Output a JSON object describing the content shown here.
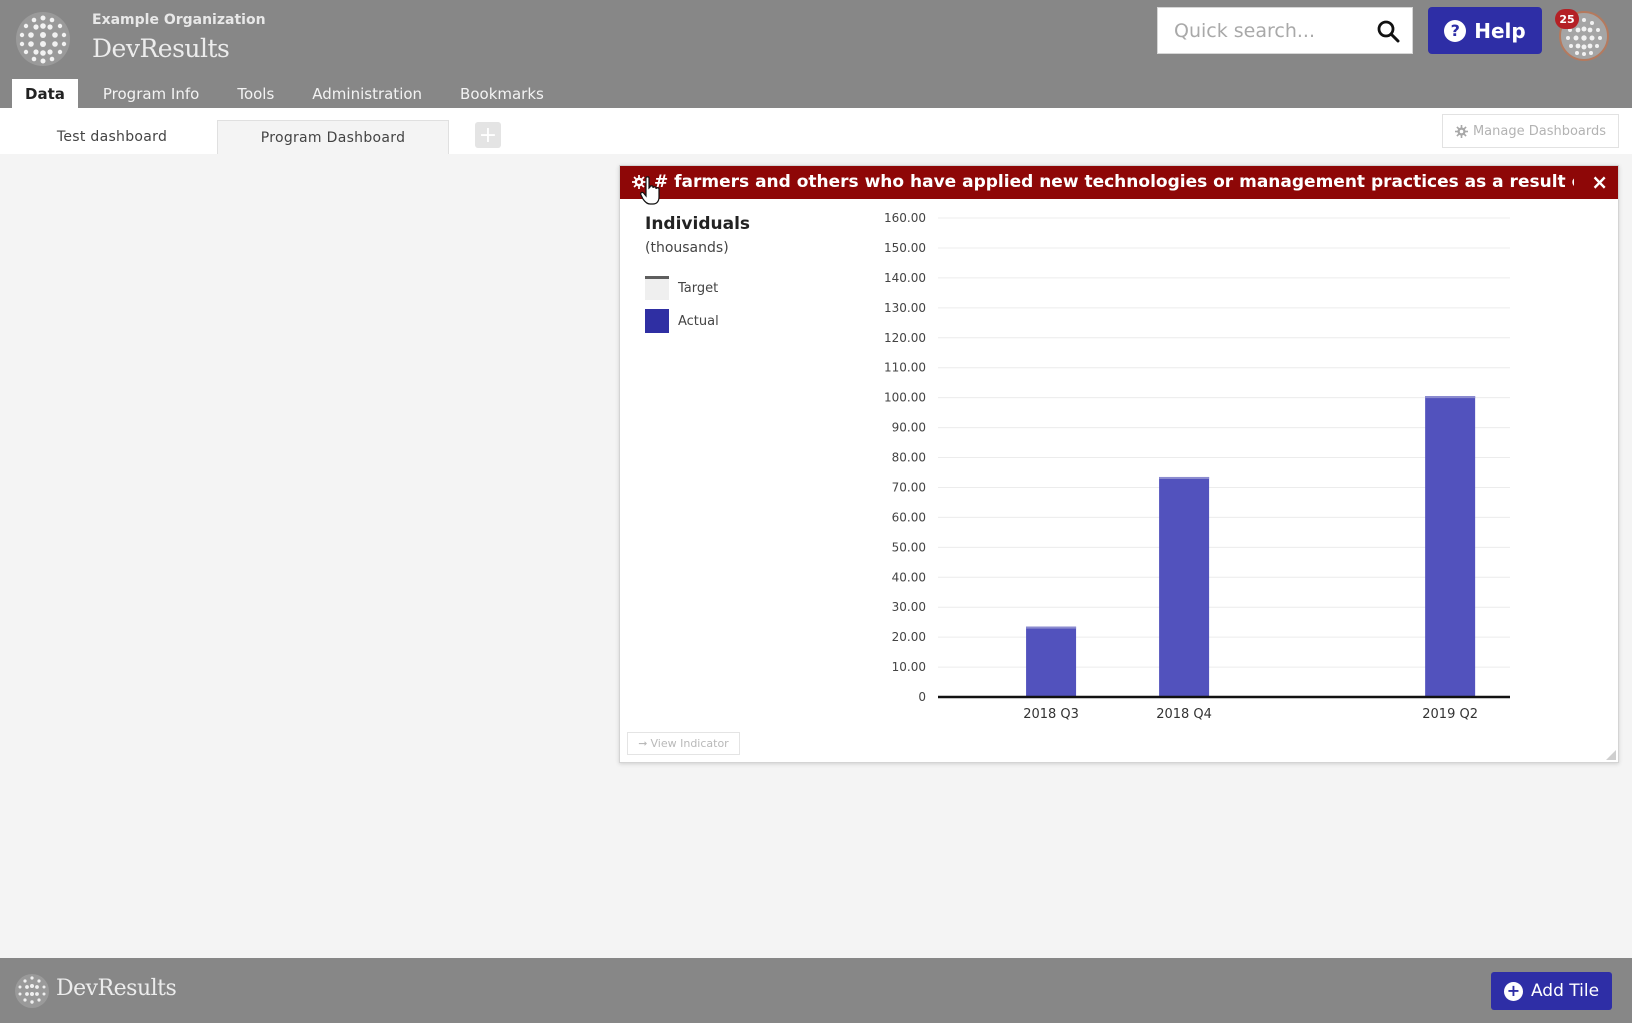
{
  "header": {
    "org_name": "Example Organization",
    "app_name": "DevResults",
    "search_placeholder": "Quick search...",
    "help_label": "Help",
    "notification_count": "25"
  },
  "nav": {
    "tabs": [
      {
        "label": "Data",
        "active": true
      },
      {
        "label": "Program Info"
      },
      {
        "label": "Tools"
      },
      {
        "label": "Administration"
      },
      {
        "label": "Bookmarks"
      }
    ]
  },
  "dashboards": {
    "tabs": [
      {
        "label": "Test dashboard"
      },
      {
        "label": "Program Dashboard",
        "active": true
      }
    ],
    "add_icon": "plus-icon",
    "manage_label": "Manage Dashboards"
  },
  "tile": {
    "title": "# farmers and others who have applied new technologies or management practices as a result of USG ...",
    "y_label": "Individuals",
    "y_unit": "(thousands)",
    "legend": [
      {
        "label": "Target",
        "color": "#5e5e5e"
      },
      {
        "label": "Actual",
        "color": "#2f2fa3"
      }
    ],
    "view_indicator_label": "View Indicator"
  },
  "chart_data": {
    "type": "bar",
    "categories": [
      "2018 Q3",
      "2018 Q4",
      "2019 Q2"
    ],
    "series": [
      {
        "name": "Actual",
        "values": [
          23.5,
          73.5,
          100.5
        ],
        "color": "#5252bd"
      }
    ],
    "ylabel": "Individuals",
    "ylim": [
      0,
      160
    ],
    "yticks": [
      "0",
      "10.00",
      "20.00",
      "30.00",
      "40.00",
      "50.00",
      "60.00",
      "70.00",
      "80.00",
      "90.00",
      "100.00",
      "110.00",
      "120.00",
      "130.00",
      "140.00",
      "150.00",
      "160.00"
    ],
    "grid": true
  },
  "footer": {
    "app_name": "DevResults",
    "add_tile_label": "Add Tile"
  }
}
